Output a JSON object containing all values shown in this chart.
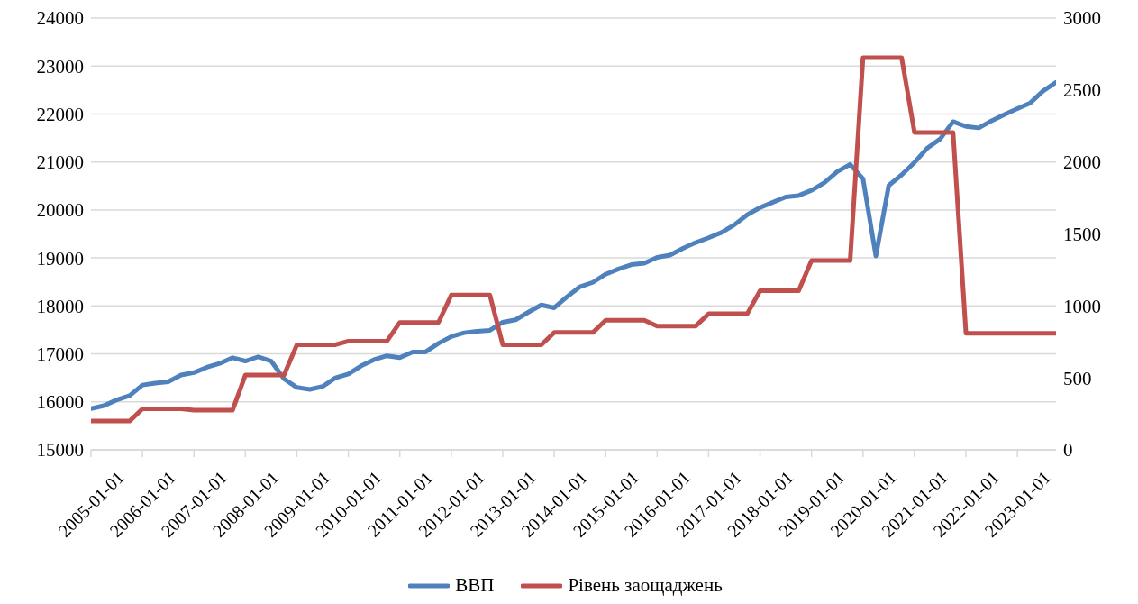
{
  "chart_data": {
    "type": "line",
    "categories": [
      "2005-01-01",
      null,
      null,
      null,
      "2006-01-01",
      null,
      null,
      null,
      "2007-01-01",
      null,
      null,
      null,
      "2008-01-01",
      null,
      null,
      null,
      "2009-01-01",
      null,
      null,
      null,
      "2010-01-01",
      null,
      null,
      null,
      "2011-01-01",
      null,
      null,
      null,
      "2012-01-01",
      null,
      null,
      null,
      "2013-01-01",
      null,
      null,
      null,
      "2014-01-01",
      null,
      null,
      null,
      "2015-01-01",
      null,
      null,
      null,
      "2016-01-01",
      null,
      null,
      null,
      "2017-01-01",
      null,
      null,
      null,
      "2018-01-01",
      null,
      null,
      null,
      "2019-01-01",
      null,
      null,
      null,
      "2020-01-01",
      null,
      null,
      null,
      "2021-01-01",
      null,
      null,
      null,
      "2022-01-01",
      null,
      null,
      null,
      "2023-01-01",
      null,
      null,
      null
    ],
    "series": [
      {
        "name": "ВВП",
        "color": "#4f81bd",
        "values": [
          15860,
          15920,
          16040,
          16130,
          16350,
          16390,
          16420,
          16560,
          16610,
          16720,
          16800,
          16920,
          16850,
          16940,
          16850,
          16480,
          16300,
          16260,
          16320,
          16500,
          16580,
          16750,
          16880,
          16960,
          16920,
          17040,
          17040,
          17220,
          17360,
          17440,
          17470,
          17490,
          17660,
          17710,
          17870,
          18020,
          17960,
          18190,
          18400,
          18490,
          18660,
          18770,
          18860,
          18890,
          19010,
          19060,
          19200,
          19320,
          19420,
          19530,
          19690,
          19900,
          20050,
          20160,
          20270,
          20300,
          20410,
          20570,
          20800,
          20950,
          20650,
          19040,
          20510,
          20730,
          20990,
          21290,
          21480,
          21840,
          21740,
          21710,
          21860,
          21990,
          22110,
          22230,
          22480,
          22660
        ]
      },
      {
        "name": "Рівень заощаджень",
        "color": "#c0504d",
        "axis": "y2",
        "values": [
          200,
          200,
          200,
          200,
          285,
          285,
          285,
          285,
          275,
          275,
          275,
          275,
          520,
          520,
          520,
          520,
          730,
          730,
          730,
          730,
          755,
          755,
          755,
          755,
          885,
          885,
          885,
          885,
          1075,
          1075,
          1075,
          1075,
          730,
          730,
          730,
          730,
          815,
          815,
          815,
          815,
          900,
          900,
          900,
          900,
          860,
          860,
          860,
          860,
          945,
          945,
          945,
          945,
          1105,
          1105,
          1105,
          1105,
          1315,
          1315,
          1315,
          1315,
          2725,
          2725,
          2725,
          2725,
          2205,
          2205,
          2205,
          2205,
          810,
          810,
          810,
          810,
          810,
          810,
          810,
          810
        ]
      }
    ],
    "ylim": [
      15000,
      24000
    ],
    "yticks": [
      15000,
      16000,
      17000,
      18000,
      19000,
      20000,
      21000,
      22000,
      23000,
      24000
    ],
    "y2lim": [
      0,
      3000
    ],
    "y2ticks": [
      0,
      500,
      1000,
      1500,
      2000,
      2500,
      3000
    ],
    "grid": "y",
    "legend": "bottom",
    "marker": "none",
    "line_style": "solid"
  }
}
